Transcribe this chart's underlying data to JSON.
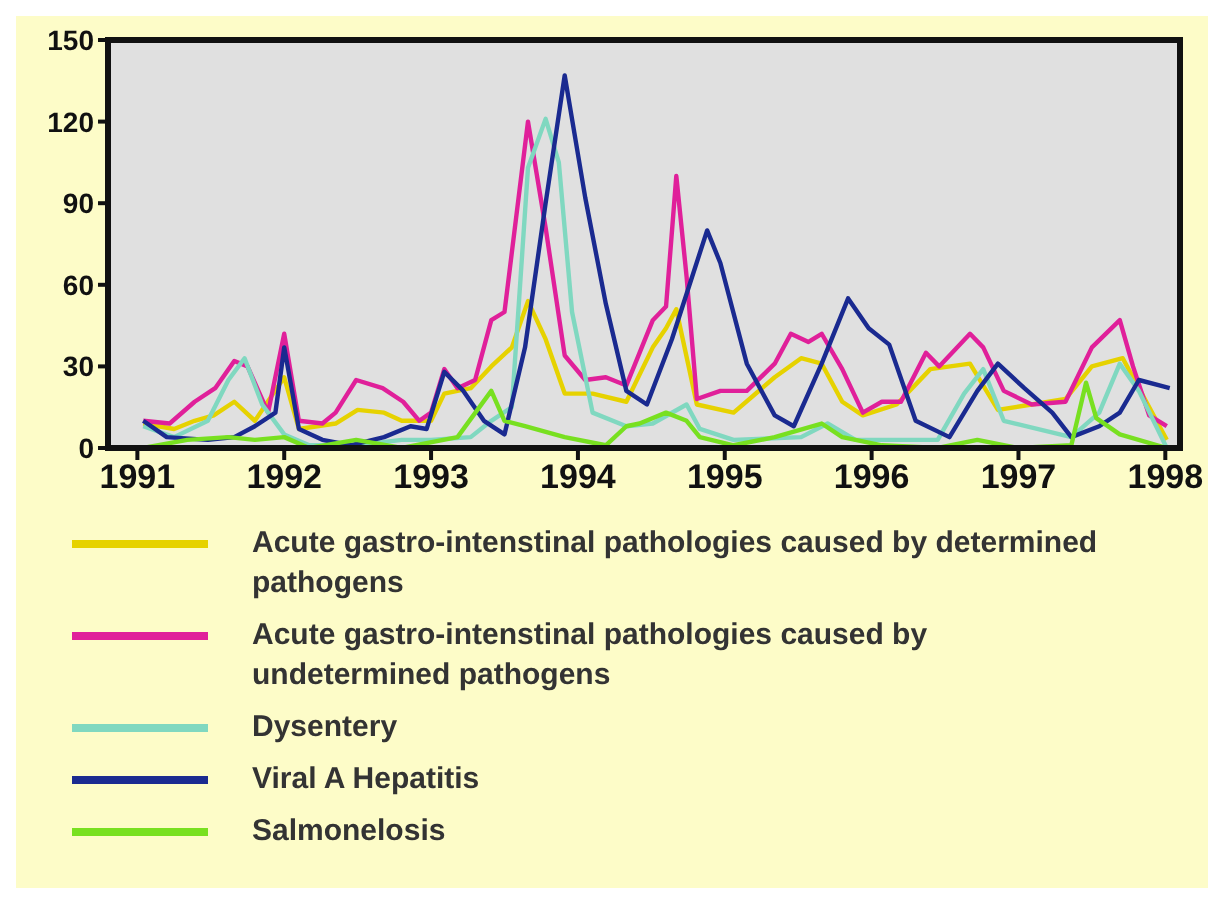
{
  "chart_data": {
    "type": "line",
    "xlim": [
      1990.8,
      1998.1
    ],
    "xticks": [
      1991,
      1992,
      1993,
      1994,
      1995,
      1996,
      1997,
      1998
    ],
    "ylim": [
      0,
      150
    ],
    "yticks": [
      0,
      30,
      60,
      90,
      120,
      150
    ],
    "legend": "bottom",
    "marker": "none",
    "line_style": "solid",
    "series": [
      {
        "name": "Acute gastro-intenstinal pathologies caused by determined pathogens",
        "color": "#e6d200",
        "x": [
          1991.04,
          1991.25,
          1991.39,
          1991.52,
          1991.66,
          1991.8,
          1992,
          1992.1,
          1992.35,
          1992.5,
          1992.68,
          1992.8,
          1993,
          1993.09,
          1993.27,
          1993.41,
          1993.55,
          1993.66,
          1993.78,
          1993.91,
          1994.1,
          1994.33,
          1994.51,
          1994.6,
          1994.67,
          1994.81,
          1995.06,
          1995.34,
          1995.52,
          1995.66,
          1995.8,
          1995.94,
          1996.17,
          1996.4,
          1996.67,
          1996.86,
          1997.09,
          1997.32,
          1997.5,
          1997.71,
          1997.82,
          1998.01
        ],
        "values": [
          9,
          7,
          10,
          12,
          17,
          10,
          26,
          7,
          9,
          14,
          13,
          10,
          10,
          20,
          22,
          30,
          37,
          54,
          40,
          20,
          20,
          17,
          37,
          44,
          51,
          16,
          13,
          26,
          33,
          31,
          17,
          12,
          16,
          29,
          31,
          14,
          16,
          18,
          30,
          33,
          22,
          3
        ]
      },
      {
        "name": "Acute gastro-intenstinal pathologies caused by undetermined pathogens",
        "color": "#e0209a",
        "x": [
          1991.04,
          1991.22,
          1991.39,
          1991.53,
          1991.66,
          1991.75,
          1991.89,
          1992,
          1992.1,
          1992.26,
          1992.35,
          1992.49,
          1992.67,
          1992.81,
          1992.92,
          1993,
          1993.09,
          1993.18,
          1993.3,
          1993.41,
          1993.5,
          1993.66,
          1993.78,
          1993.91,
          1994.05,
          1994.19,
          1994.33,
          1994.51,
          1994.6,
          1994.67,
          1994.74,
          1994.81,
          1994.97,
          1995.15,
          1995.34,
          1995.45,
          1995.57,
          1995.66,
          1995.8,
          1995.94,
          1996.07,
          1996.2,
          1996.37,
          1996.46,
          1996.67,
          1996.76,
          1996.9,
          1997.09,
          1997.32,
          1997.5,
          1997.69,
          1997.78,
          1997.89,
          1998.01
        ],
        "values": [
          10,
          9,
          17,
          22,
          32,
          30,
          13,
          42,
          10,
          9,
          13,
          25,
          22,
          17,
          10,
          13,
          29,
          22,
          25,
          47,
          50,
          120,
          81,
          34,
          25,
          26,
          23,
          47,
          52,
          100,
          63,
          18,
          21,
          21,
          31,
          42,
          39,
          42,
          29,
          13,
          17,
          17,
          35,
          30,
          42,
          37,
          21,
          16,
          17,
          37,
          47,
          30,
          12,
          8
        ]
      },
      {
        "name": "Dysentery",
        "color": "#80d8c0",
        "x": [
          1991.04,
          1991.25,
          1991.48,
          1991.62,
          1991.73,
          1991.85,
          1992,
          1992.17,
          1992.5,
          1992.8,
          1993,
          1993.27,
          1993.41,
          1993.55,
          1993.66,
          1993.78,
          1993.87,
          1993.96,
          1994.1,
          1994.33,
          1994.51,
          1994.74,
          1994.83,
          1995.06,
          1995.52,
          1995.7,
          1995.89,
          1996.45,
          1996.63,
          1996.76,
          1996.9,
          1997.36,
          1997.55,
          1997.69,
          1997.82,
          1998.01
        ],
        "values": [
          8,
          4,
          10,
          25,
          33,
          16,
          5,
          1,
          1,
          3,
          3,
          4,
          10,
          15,
          103,
          121,
          105,
          50,
          13,
          8,
          9,
          16,
          7,
          3,
          4,
          9,
          3,
          3,
          20,
          29,
          10,
          4,
          13,
          31,
          21,
          0
        ]
      },
      {
        "name": "Viral A Hepatitis",
        "color": "#1a2a90",
        "x": [
          1991.04,
          1991.2,
          1991.48,
          1991.66,
          1991.8,
          1991.94,
          1992,
          1992.1,
          1992.26,
          1992.45,
          1992.68,
          1992.86,
          1992.97,
          1993.09,
          1993.22,
          1993.36,
          1993.5,
          1993.64,
          1993.78,
          1993.91,
          1994.05,
          1994.19,
          1994.33,
          1994.47,
          1994.64,
          1994.88,
          1994.97,
          1995.15,
          1995.34,
          1995.47,
          1995.66,
          1995.84,
          1995.98,
          1996.12,
          1996.3,
          1996.53,
          1996.72,
          1996.86,
          1997.04,
          1997.23,
          1997.36,
          1997.55,
          1997.69,
          1997.82,
          1997.96,
          1998.03
        ],
        "values": [
          10,
          4,
          3,
          4,
          8,
          13,
          37,
          7,
          3,
          1,
          4,
          8,
          7,
          28,
          21,
          10,
          5,
          37,
          90,
          137,
          92,
          53,
          21,
          16,
          40,
          80,
          68,
          31,
          12,
          8,
          31,
          55,
          44,
          38,
          10,
          4,
          21,
          31,
          22,
          13,
          4,
          8,
          13,
          25,
          23,
          22
        ]
      },
      {
        "name": "Salmonelosis",
        "color": "#78e020",
        "x": [
          1991.04,
          1991.34,
          1991.62,
          1991.8,
          1992,
          1992.17,
          1992.49,
          1992.8,
          1993.18,
          1993.41,
          1993.5,
          1993.64,
          1993.91,
          1994.19,
          1994.33,
          1994.42,
          1994.6,
          1994.74,
          1994.83,
          1995.06,
          1995.34,
          1995.66,
          1995.8,
          1996.07,
          1996.45,
          1996.72,
          1997,
          1997.36,
          1997.46,
          1997.53,
          1997.69,
          1998.01
        ],
        "values": [
          0,
          3,
          4,
          3,
          4,
          0,
          3,
          0,
          4,
          21,
          10,
          8,
          4,
          1,
          8,
          9,
          13,
          10,
          4,
          1,
          4,
          9,
          4,
          1,
          0,
          3,
          0,
          1,
          24,
          11,
          5,
          0
        ]
      }
    ]
  }
}
